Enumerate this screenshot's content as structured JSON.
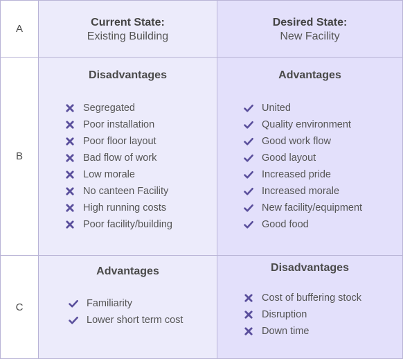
{
  "rows": {
    "a": "A",
    "b": "B",
    "c": "C"
  },
  "current": {
    "title": "Current State:",
    "subtitle": "Existing Building",
    "disadvantages_title": "Disadvantages",
    "disadvantages": [
      "Segregated",
      "Poor installation",
      "Poor floor layout",
      "Bad flow of work",
      "Low morale",
      "No canteen Facility",
      "High running costs",
      "Poor facility/building"
    ],
    "advantages_title": "Advantages",
    "advantages": [
      "Familiarity",
      "Lower short term cost"
    ]
  },
  "desired": {
    "title": "Desired State:",
    "subtitle": "New Facility",
    "advantages_title": "Advantages",
    "advantages": [
      "United",
      "Quality environment",
      "Good work flow",
      "Good layout",
      "Increased pride",
      "Increased morale",
      "New facility/equipment",
      "Good food"
    ],
    "disadvantages_title": "Disadvantages",
    "disadvantages": [
      "Cost of buffering stock",
      "Disruption",
      "Down time"
    ]
  },
  "icons": {
    "check": "check-icon",
    "cross": "cross-icon",
    "icon_color": "#5a4f9c"
  }
}
